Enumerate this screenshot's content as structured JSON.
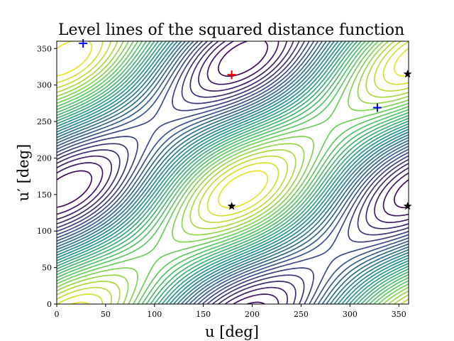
{
  "chart_data": {
    "type": "contour",
    "title": "Level lines of the squared distance function",
    "xlabel": "u [deg]",
    "ylabel": "u′ [deg]",
    "xlim": [
      0,
      360
    ],
    "ylim": [
      0,
      360
    ],
    "xticks": [
      0,
      50,
      100,
      150,
      200,
      250,
      300,
      350
    ],
    "yticks": [
      0,
      50,
      100,
      150,
      200,
      250,
      300,
      350
    ],
    "colormap": [
      "#440154",
      "#3b528b",
      "#21918c",
      "#5ec962",
      "#fde725"
    ],
    "maxima": [
      {
        "u": 179,
        "v": 314
      },
      {
        "u": 179,
        "v": 314
      }
    ],
    "minima": [
      {
        "u": 27,
        "v": 357
      },
      {
        "u": 328,
        "v": 269
      }
    ],
    "saddles": [
      {
        "u": 179,
        "v": 134
      },
      {
        "u": 359,
        "v": 134
      },
      {
        "u": 359,
        "v": 315
      }
    ],
    "marker_colors": {
      "maximum": "#ff0000",
      "minimum": "#0000ff",
      "saddle": "#000000"
    },
    "grid": false
  }
}
